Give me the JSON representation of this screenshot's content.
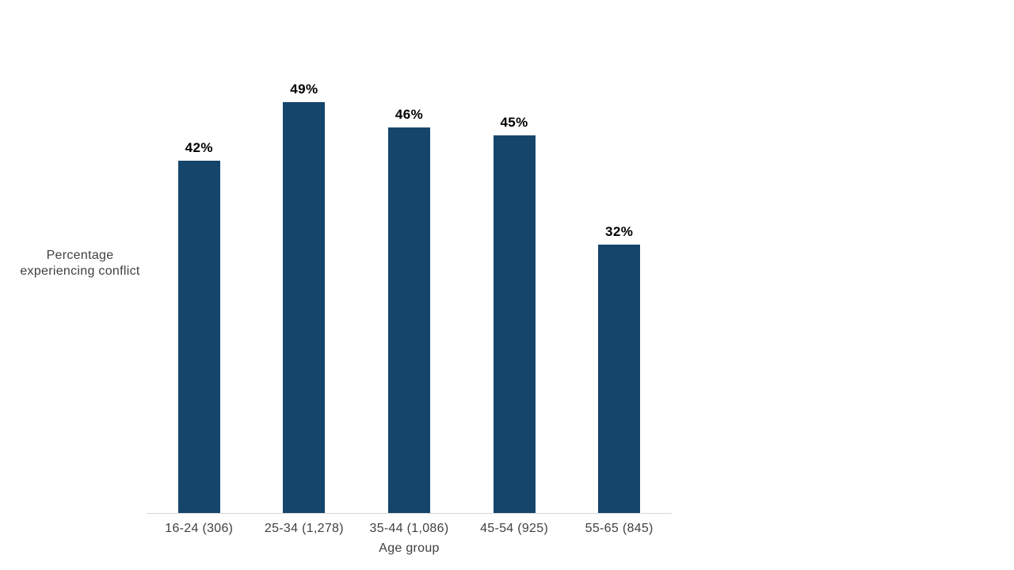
{
  "chart_data": {
    "type": "bar",
    "title": "",
    "categories": [
      "16-24 (306)",
      "25-34 (1,278)",
      "35-44 (1,086)",
      "45-54 (925)",
      "55-65 (845)"
    ],
    "values": [
      42,
      49,
      46,
      45,
      32
    ],
    "data_labels": [
      "42%",
      "49%",
      "46%",
      "45%",
      "32%"
    ],
    "xlabel": "Age group",
    "ylabel_lines": [
      "Percentage",
      "experiencing conflict"
    ],
    "ylabel": "Percentage experiencing conflict",
    "ylim": [
      0,
      53
    ],
    "grid": "off",
    "legend": "none",
    "value_axis_visible": false,
    "bar_color": "#16456B",
    "axis_line_color": "#D9D9D9",
    "data_label_color": "#000000",
    "axis_text_color": "#404040",
    "background_color": "#FFFFFF"
  }
}
